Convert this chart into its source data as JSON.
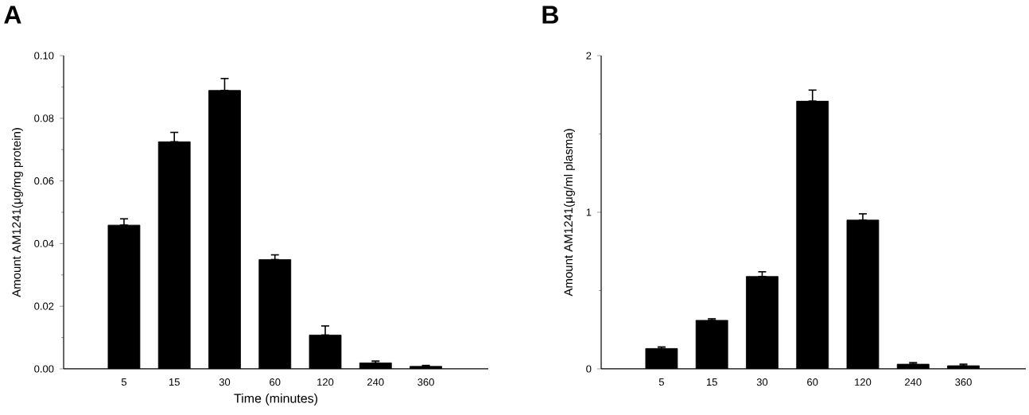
{
  "chart_data": [
    {
      "type": "bar",
      "title": "A",
      "xlabel": "Time (minutes)",
      "ylabel": "Amount AM1241(μg/mg protein)",
      "categories": [
        "5",
        "15",
        "30",
        "60",
        "120",
        "240",
        "360"
      ],
      "values": [
        0.0459,
        0.0725,
        0.0889,
        0.0349,
        0.0108,
        0.0019,
        0.0008
      ],
      "errors": [
        [
          0.0459,
          0.0479
        ],
        [
          0.0725,
          0.0755
        ],
        [
          0.0889,
          0.0927
        ],
        [
          0.0349,
          0.0364
        ],
        [
          0.0108,
          0.0137
        ],
        [
          0.0019,
          0.0025
        ],
        [
          0.0008,
          0.0011
        ]
      ],
      "color": "#000000",
      "ylim": [
        0,
        0.1
      ],
      "yticks": [
        {
          "value": 0,
          "label": "0.00"
        },
        {
          "value": 0.02,
          "label": "0.02"
        },
        {
          "value": 0.04,
          "label": "0.04"
        },
        {
          "value": 0.06,
          "label": "0.06"
        },
        {
          "value": 0.08,
          "label": "0.08"
        },
        {
          "value": 0.1,
          "label": "0.10"
        }
      ]
    },
    {
      "type": "bar",
      "title": "B",
      "ylabel": "Amount AM1241(μg/ml plasma)",
      "categories": [
        "5",
        "15",
        "30",
        "60",
        "120",
        "240",
        "360"
      ],
      "values": [
        0.13,
        0.31,
        0.59,
        1.71,
        0.95,
        0.03,
        0.02
      ],
      "errors": [
        [
          0.13,
          0.14
        ],
        [
          0.31,
          0.32
        ],
        [
          0.59,
          0.62
        ],
        [
          1.71,
          1.78
        ],
        [
          0.95,
          0.99
        ],
        [
          0.03,
          0.04
        ],
        [
          0.02,
          0.03
        ]
      ],
      "color": "#000000",
      "ylim": [
        0,
        2
      ],
      "yticks": [
        0,
        1,
        2
      ]
    }
  ]
}
